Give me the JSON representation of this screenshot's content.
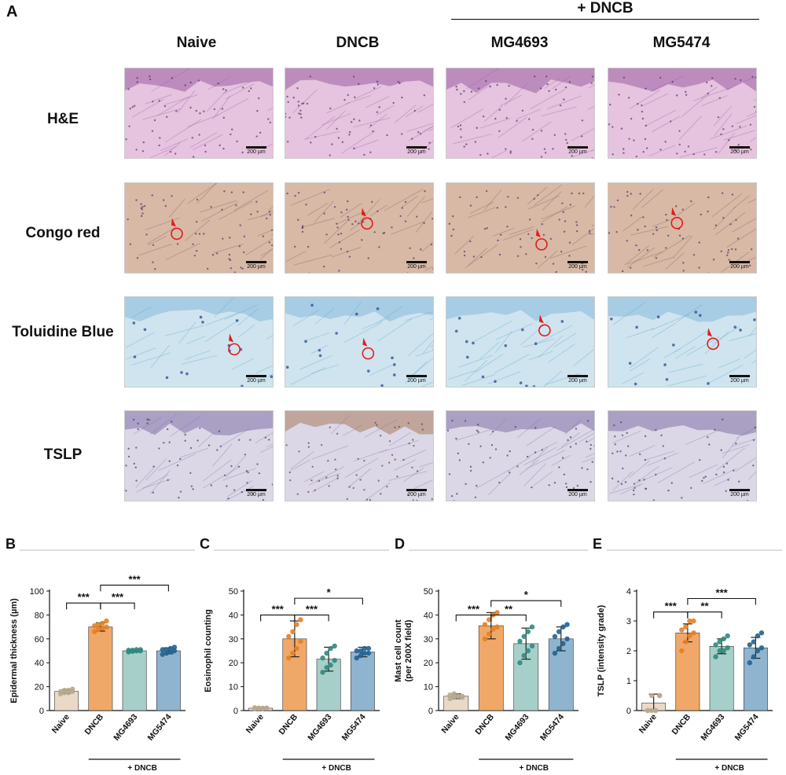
{
  "panel_a": {
    "letter": "A",
    "group_label": "+ DNCB",
    "columns": [
      "Naive",
      "DNCB",
      "MG4693",
      "MG5474"
    ],
    "rows": [
      "H&E",
      "Congo red",
      "Toluidine Blue",
      "TSLP"
    ],
    "scale_label": "200 µm",
    "stain_colors": {
      "he_bg": "#e6c3de",
      "he_fg": "#9a5fa6",
      "congo_bg": "#d7b9a6",
      "congo_fg": "#8a5a59",
      "tb_bg": "#cfe4ee",
      "tb_fg": "#5aa4cf",
      "tslp_bg": "#dcd7e6",
      "tslp_fg": "#7f73a8",
      "tslp_brown": "#a77b5c",
      "marker": "#e31b1b"
    }
  },
  "chart_data": [
    {
      "letter": "B",
      "type": "bar",
      "ylabel": "Epidermal thickness (µm)",
      "ylim": [
        0,
        100
      ],
      "yticks": [
        0,
        20,
        40,
        60,
        80,
        100
      ],
      "categories": [
        "Naive",
        "DNCB",
        "MG4693",
        "MG5474"
      ],
      "values": [
        16,
        70,
        50,
        50
      ],
      "errors": [
        1.5,
        3.5,
        1.0,
        2.5
      ],
      "points": [
        [
          14,
          15,
          15,
          16,
          16,
          17,
          17,
          18
        ],
        [
          66,
          68,
          69,
          70,
          71,
          72,
          73,
          75
        ],
        [
          49,
          49.5,
          50,
          50,
          50.5,
          50.5,
          51,
          51
        ],
        [
          47,
          48,
          49,
          50,
          51,
          51,
          52,
          53
        ]
      ],
      "colors": [
        "#ead9c6",
        "#f0a868",
        "#a7cfc9",
        "#8fb4cf"
      ],
      "point_colors": [
        "#b8a98f",
        "#e67e22",
        "#2f8a7d",
        "#23618f"
      ],
      "group_label": "+ DNCB",
      "significance": [
        {
          "from": 0,
          "to": 1,
          "label": "***",
          "level": 90
        },
        {
          "from": 1,
          "to": 2,
          "label": "***",
          "level": 90
        },
        {
          "from": 1,
          "to": 3,
          "label": "***",
          "level": 105
        }
      ]
    },
    {
      "letter": "C",
      "type": "bar",
      "ylabel": "Eosinophil counting",
      "ylim": [
        0,
        50
      ],
      "yticks": [
        0,
        10,
        20,
        30,
        40,
        50
      ],
      "categories": [
        "Naive",
        "DNCB",
        "MG4693",
        "MG5474"
      ],
      "values": [
        1,
        30,
        21.5,
        24.5
      ],
      "errors": [
        0.3,
        7.5,
        5,
        2
      ],
      "points": [
        [
          0.8,
          1,
          1,
          1,
          1.2,
          1,
          0.9,
          1.1
        ],
        [
          22,
          24,
          26,
          29,
          31,
          33,
          36,
          38
        ],
        [
          16,
          18,
          19,
          21,
          22,
          24,
          26,
          27
        ],
        [
          22,
          23,
          24,
          24,
          25,
          25,
          26,
          26
        ]
      ],
      "colors": [
        "#ead9c6",
        "#f0a868",
        "#a7cfc9",
        "#8fb4cf"
      ],
      "point_colors": [
        "#b8a98f",
        "#e67e22",
        "#2f8a7d",
        "#23618f"
      ],
      "group_label": "+ DNCB",
      "significance": [
        {
          "from": 0,
          "to": 1,
          "label": "***",
          "level": 40
        },
        {
          "from": 1,
          "to": 2,
          "label": "***",
          "level": 40
        },
        {
          "from": 1,
          "to": 3,
          "label": "*",
          "level": 47
        }
      ]
    },
    {
      "letter": "D",
      "type": "bar",
      "ylabel": "Mast cell count\n(per 200X field)",
      "ylim": [
        0,
        50
      ],
      "yticks": [
        0,
        10,
        20,
        30,
        40,
        50
      ],
      "categories": [
        "Naive",
        "DNCB",
        "MG4693",
        "MG5474"
      ],
      "values": [
        6,
        35.5,
        28,
        30
      ],
      "errors": [
        1,
        5.5,
        6.5,
        5
      ],
      "points": [
        [
          5,
          5.5,
          6,
          6,
          6.5,
          7,
          6,
          5.5
        ],
        [
          30,
          32,
          34,
          35,
          36,
          38,
          40,
          41
        ],
        [
          20,
          23,
          25,
          27,
          29,
          31,
          33,
          35
        ],
        [
          24,
          26,
          28,
          30,
          31,
          33,
          35,
          36
        ]
      ],
      "colors": [
        "#ead9c6",
        "#f0a868",
        "#a7cfc9",
        "#8fb4cf"
      ],
      "point_colors": [
        "#b8a98f",
        "#e67e22",
        "#2f8a7d",
        "#23618f"
      ],
      "group_label": "+ DNCB",
      "significance": [
        {
          "from": 0,
          "to": 1,
          "label": "***",
          "level": 40
        },
        {
          "from": 1,
          "to": 2,
          "label": "**",
          "level": 40
        },
        {
          "from": 1,
          "to": 3,
          "label": "*",
          "level": 46
        }
      ]
    },
    {
      "letter": "E",
      "type": "bar",
      "ylabel": "TSLP (intensity grade)",
      "ylim": [
        0,
        4
      ],
      "yticks": [
        0,
        1,
        2,
        3,
        4
      ],
      "categories": [
        "Naive",
        "DNCB",
        "MG4693",
        "MG5474"
      ],
      "values": [
        0.25,
        2.6,
        2.15,
        2.1
      ],
      "errors": [
        0.3,
        0.3,
        0.25,
        0.35
      ],
      "points": [
        [
          0,
          0,
          0,
          0.5,
          0,
          0.5,
          0,
          0.5
        ],
        [
          2,
          2.3,
          2.5,
          2.6,
          2.7,
          2.8,
          3,
          3
        ],
        [
          1.8,
          2,
          2,
          2.1,
          2.2,
          2.3,
          2.4,
          2.5
        ],
        [
          1.6,
          1.8,
          2,
          2.1,
          2.2,
          2.3,
          2.5,
          2.6
        ]
      ],
      "colors": [
        "#ead9c6",
        "#f0a868",
        "#a7cfc9",
        "#8fb4cf"
      ],
      "point_colors": [
        "#b8a98f",
        "#e67e22",
        "#2f8a7d",
        "#23618f"
      ],
      "group_label": "+ DNCB",
      "significance": [
        {
          "from": 0,
          "to": 1,
          "label": "***",
          "level": 3.3
        },
        {
          "from": 1,
          "to": 2,
          "label": "**",
          "level": 3.3
        },
        {
          "from": 1,
          "to": 3,
          "label": "***",
          "level": 3.75
        }
      ]
    }
  ]
}
